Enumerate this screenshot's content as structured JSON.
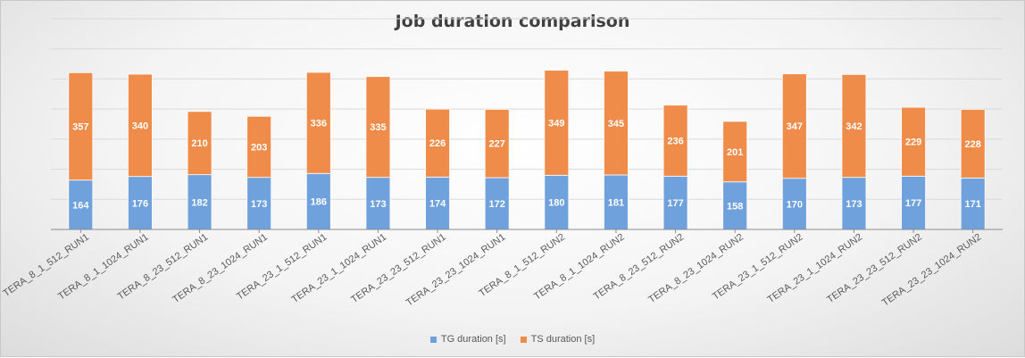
{
  "chart_data": {
    "type": "bar",
    "stacked": true,
    "title": "Job duration comparison",
    "xlabel": "",
    "ylabel": "",
    "ylim": [
      0,
      700
    ],
    "grid": true,
    "legend_position": "bottom",
    "categories": [
      "TERA_8_1_512_RUN1",
      "TERA_8_1_1024_RUN1",
      "TERA_8_23_512_RUN1",
      "TERA_8_23_1024_RUN1",
      "TERA_23_1_512_RUN1",
      "TERA_23_1_1024_RUN1",
      "TERA_23_23_512_RUN1",
      "TERA_23_23_1024_RUN1",
      "TERA_8_1_512_RUN2",
      "TERA_8_1_1024_RUN2",
      "TERA_8_23_512_RUN2",
      "TERA_8_23_1024_RUN2",
      "TERA_23_1_512_RUN2",
      "TERA_23_1_1024_RUN2",
      "TERA_23_23_512_RUN2",
      "TERA_23_23_1024_RUN2"
    ],
    "series": [
      {
        "name": "TG duration [s]",
        "color": "#6fa1dc",
        "values": [
          164,
          176,
          182,
          173,
          186,
          173,
          174,
          172,
          180,
          181,
          177,
          158,
          170,
          173,
          177,
          171
        ]
      },
      {
        "name": "TS duration [s]",
        "color": "#f08c4a",
        "values": [
          357,
          340,
          210,
          203,
          336,
          335,
          226,
          227,
          349,
          345,
          236,
          201,
          347,
          342,
          229,
          228
        ]
      }
    ]
  }
}
